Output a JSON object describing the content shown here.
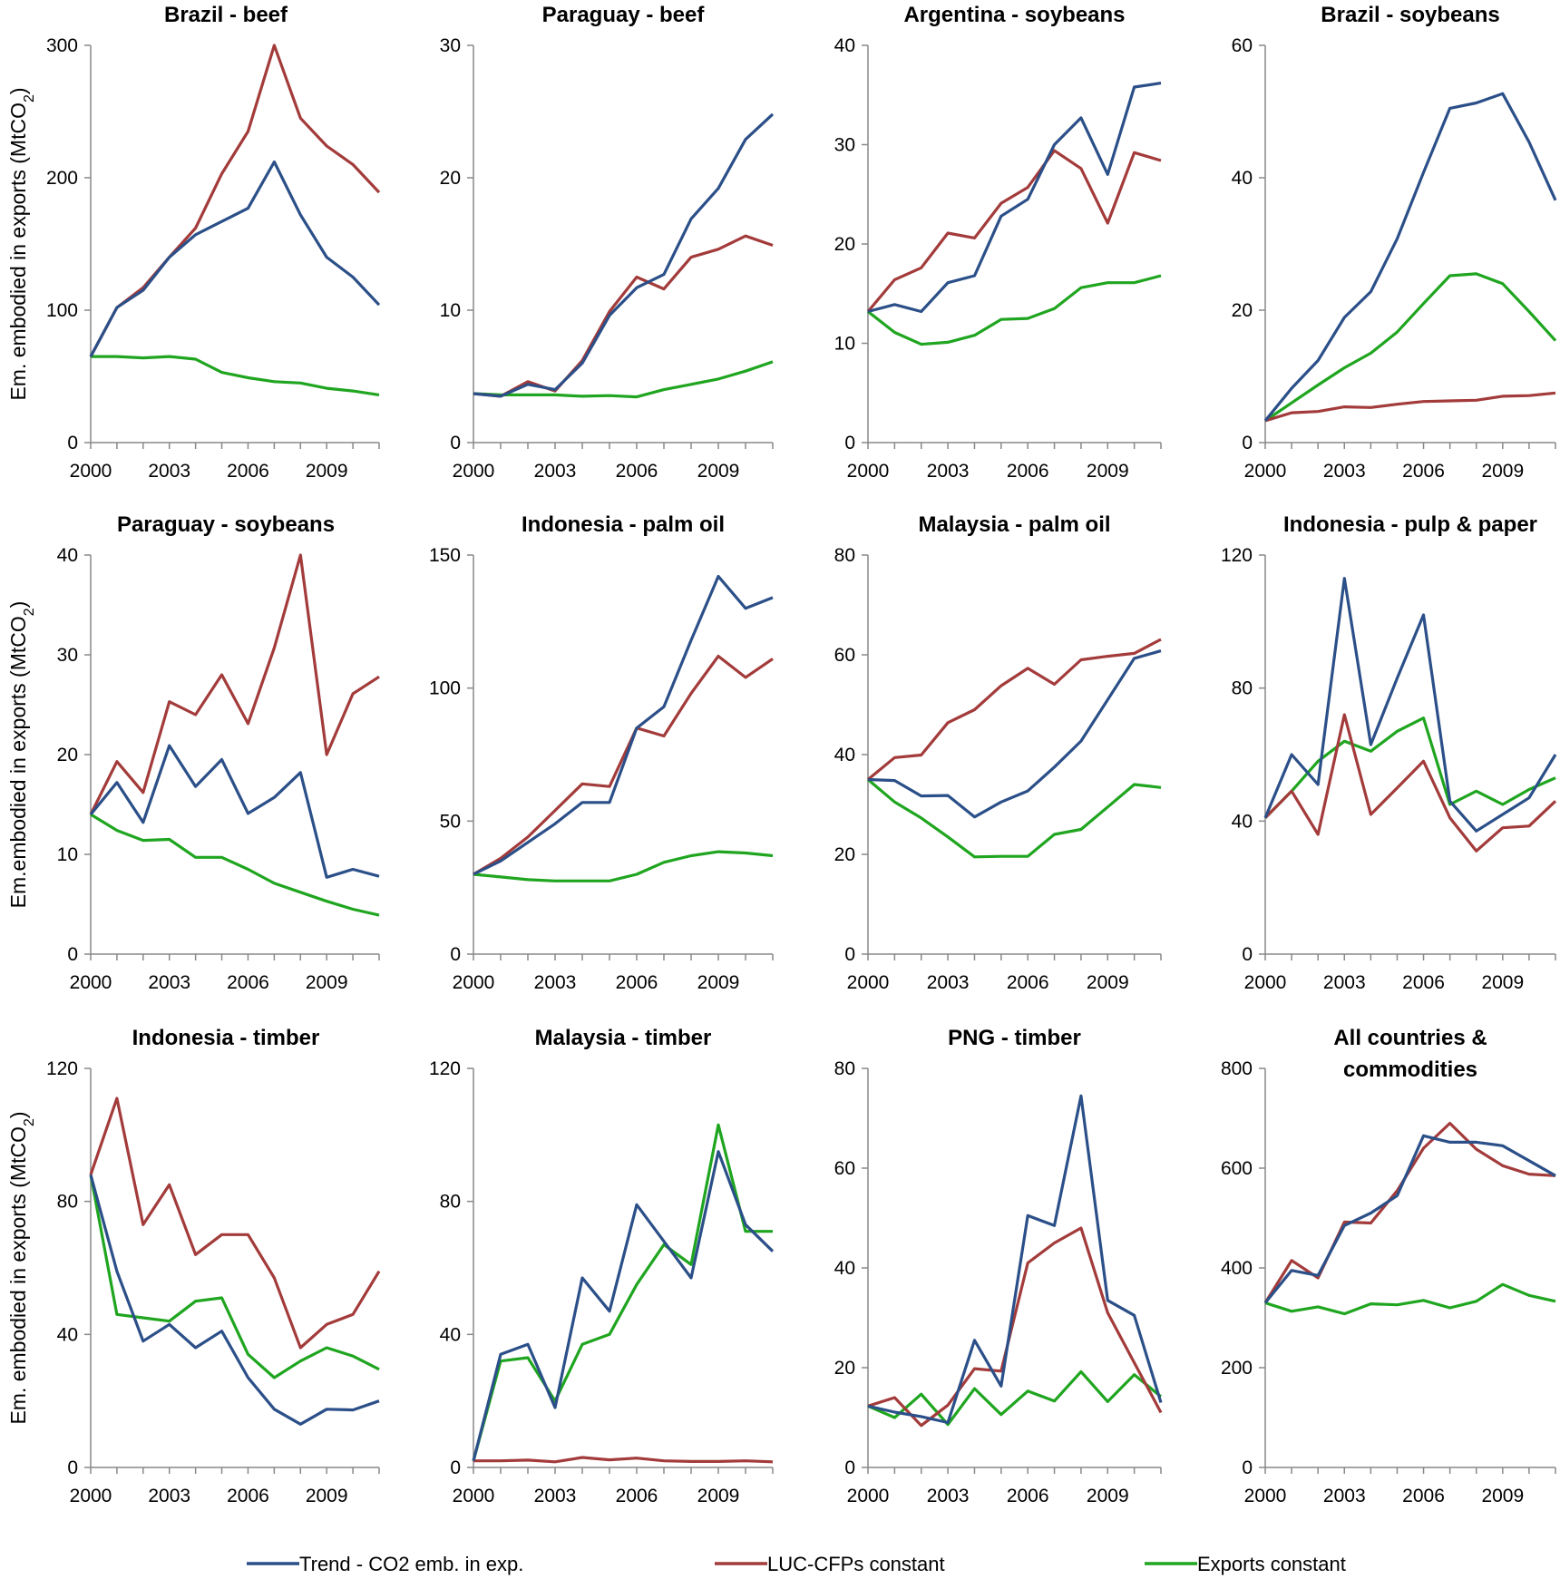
{
  "legend": [
    {
      "name": "Trend - CO2 emb. in exp.",
      "color": "#2b4f88"
    },
    {
      "name": "LUC-CFPs constant",
      "color": "#a33b3b"
    },
    {
      "name": "Exports constant",
      "color": "#1fa51f"
    }
  ],
  "chart_data": [
    {
      "type": "line",
      "title": [
        "Brazil - beef"
      ],
      "ylabel": "Em. embodied in exports (MtCO2)",
      "ylim": [
        0,
        300
      ],
      "yticks": [
        0,
        100,
        200,
        300
      ],
      "xticks": [
        2000,
        2003,
        2006,
        2009
      ],
      "x": [
        2000,
        2001,
        2002,
        2003,
        2004,
        2005,
        2006,
        2007,
        2008,
        2009,
        2010,
        2011
      ],
      "series": [
        {
          "name": "Trend - CO2 emb. in exp.",
          "values": [
            65,
            102,
            115,
            140,
            157,
            167,
            177,
            212,
            172,
            140,
            125,
            104
          ]
        },
        {
          "name": "LUC-CFPs constant",
          "values": [
            65,
            102,
            117,
            140,
            162,
            203,
            235,
            300,
            245,
            224,
            210,
            189
          ]
        },
        {
          "name": "Exports constant",
          "values": [
            65,
            65,
            64,
            65,
            63,
            53,
            49,
            46,
            45,
            41,
            39,
            36
          ]
        }
      ]
    },
    {
      "type": "line",
      "title": [
        "Paraguay - beef"
      ],
      "ylabel": "",
      "ylim": [
        0,
        30
      ],
      "yticks": [
        0,
        10,
        20,
        30
      ],
      "xticks": [
        2000,
        2003,
        2006,
        2009
      ],
      "x": [
        2000,
        2001,
        2002,
        2003,
        2004,
        2005,
        2006,
        2007,
        2008,
        2009,
        2010,
        2011
      ],
      "series": [
        {
          "name": "Trend - CO2 emb. in exp.",
          "values": [
            3.7,
            3.5,
            4.4,
            4.0,
            6.0,
            9.6,
            11.7,
            12.7,
            16.9,
            19.2,
            22.9,
            24.8
          ]
        },
        {
          "name": "LUC-CFPs constant",
          "values": [
            3.7,
            3.5,
            4.6,
            3.9,
            6.2,
            9.9,
            12.5,
            11.6,
            14.0,
            14.6,
            15.6,
            14.9
          ]
        },
        {
          "name": "Exports constant",
          "values": [
            3.7,
            3.6,
            3.6,
            3.6,
            3.5,
            3.55,
            3.45,
            4.0,
            4.4,
            4.8,
            5.4,
            6.1
          ]
        }
      ]
    },
    {
      "type": "line",
      "title": [
        "Argentina - soybeans"
      ],
      "ylabel": "",
      "ylim": [
        0,
        40
      ],
      "yticks": [
        0,
        10,
        20,
        30,
        40
      ],
      "xticks": [
        2000,
        2003,
        2006,
        2009
      ],
      "x": [
        2000,
        2001,
        2002,
        2003,
        2004,
        2005,
        2006,
        2007,
        2008,
        2009,
        2010,
        2011
      ],
      "series": [
        {
          "name": "Trend - CO2 emb. in exp.",
          "values": [
            13.2,
            13.9,
            13.2,
            16.1,
            16.8,
            22.8,
            24.5,
            30.0,
            32.7,
            27.0,
            35.8,
            36.2
          ]
        },
        {
          "name": "LUC-CFPs constant",
          "values": [
            13.2,
            16.4,
            17.6,
            21.1,
            20.6,
            24.1,
            25.7,
            29.4,
            27.6,
            22.1,
            29.2,
            28.4
          ]
        },
        {
          "name": "Exports constant",
          "values": [
            13.2,
            11.1,
            9.9,
            10.1,
            10.8,
            12.4,
            12.5,
            13.5,
            15.6,
            16.1,
            16.1,
            16.8
          ]
        }
      ]
    },
    {
      "type": "line",
      "title": [
        "Brazil - soybeans"
      ],
      "ylabel": "",
      "ylim": [
        0,
        60
      ],
      "yticks": [
        0,
        20,
        40,
        60
      ],
      "xticks": [
        2000,
        2003,
        2006,
        2009
      ],
      "x": [
        2000,
        2001,
        2002,
        2003,
        2004,
        2005,
        2006,
        2007,
        2008,
        2009,
        2010,
        2011
      ],
      "series": [
        {
          "name": "Trend - CO2 emb. in exp.",
          "values": [
            3.3,
            8.2,
            12.4,
            18.9,
            22.8,
            30.8,
            40.8,
            50.5,
            51.3,
            52.7,
            45.4,
            36.6
          ]
        },
        {
          "name": "LUC-CFPs constant",
          "values": [
            3.3,
            4.5,
            4.7,
            5.4,
            5.3,
            5.8,
            6.2,
            6.3,
            6.4,
            7.0,
            7.1,
            7.5
          ]
        },
        {
          "name": "Exports constant",
          "values": [
            3.3,
            6.0,
            8.7,
            11.3,
            13.5,
            16.7,
            21.0,
            25.2,
            25.5,
            24.0,
            19.8,
            15.4
          ]
        }
      ]
    },
    {
      "type": "line",
      "title": [
        "Paraguay - soybeans"
      ],
      "ylabel": "Em.embodied in exports (MtCO2)",
      "ylim": [
        0,
        40
      ],
      "yticks": [
        0,
        10,
        20,
        30,
        40
      ],
      "xticks": [
        2000,
        2003,
        2006,
        2009
      ],
      "x": [
        2000,
        2001,
        2002,
        2003,
        2004,
        2005,
        2006,
        2007,
        2008,
        2009,
        2010,
        2011
      ],
      "series": [
        {
          "name": "Trend - CO2 emb. in exp.",
          "values": [
            14,
            17.2,
            13.2,
            20.9,
            16.8,
            19.5,
            14.1,
            15.7,
            18.2,
            7.7,
            8.5,
            7.8
          ]
        },
        {
          "name": "LUC-CFPs constant",
          "values": [
            14,
            19.3,
            16.2,
            25.3,
            24.0,
            28.0,
            23.1,
            30.7,
            40,
            20.0,
            26.1,
            27.8
          ]
        },
        {
          "name": "Exports constant",
          "values": [
            14,
            12.4,
            11.4,
            11.5,
            9.7,
            9.7,
            8.5,
            7.1,
            6.2,
            5.3,
            4.5,
            3.9
          ]
        }
      ]
    },
    {
      "type": "line",
      "title": [
        "Indonesia - palm oil"
      ],
      "ylabel": "",
      "ylim": [
        0,
        150
      ],
      "yticks": [
        0,
        50,
        100,
        150
      ],
      "xticks": [
        2000,
        2003,
        2006,
        2009
      ],
      "x": [
        2000,
        2001,
        2002,
        2003,
        2004,
        2005,
        2006,
        2007,
        2008,
        2009,
        2010,
        2011
      ],
      "series": [
        {
          "name": "Trend - CO2 emb. in exp.",
          "values": [
            30,
            35,
            42,
            49,
            57,
            57,
            85,
            93,
            118,
            142,
            130,
            134
          ]
        },
        {
          "name": "LUC-CFPs constant",
          "values": [
            30,
            36,
            44,
            54,
            64,
            63,
            85,
            82,
            98,
            112,
            104,
            111
          ]
        },
        {
          "name": "Exports constant",
          "values": [
            30,
            29,
            28,
            27.5,
            27.5,
            27.5,
            30,
            34.5,
            37,
            38.5,
            38,
            37
          ]
        }
      ]
    },
    {
      "type": "line",
      "title": [
        "Malaysia - palm oil"
      ],
      "ylabel": "",
      "ylim": [
        0,
        80
      ],
      "yticks": [
        0,
        20,
        40,
        60,
        80
      ],
      "xticks": [
        2000,
        2003,
        2006,
        2009
      ],
      "x": [
        2000,
        2001,
        2002,
        2003,
        2004,
        2005,
        2006,
        2007,
        2008,
        2009,
        2010,
        2011
      ],
      "series": [
        {
          "name": "Trend - CO2 emb. in exp.",
          "values": [
            35,
            34.8,
            31.7,
            31.8,
            27.5,
            30.5,
            32.7,
            37.5,
            42.7,
            51,
            59.3,
            60.8
          ]
        },
        {
          "name": "LUC-CFPs constant",
          "values": [
            35,
            39.4,
            39.9,
            46.4,
            49,
            53.8,
            57.3,
            54.1,
            59,
            59.7,
            60.3,
            63.1
          ]
        },
        {
          "name": "Exports constant",
          "values": [
            35,
            30.5,
            27.3,
            23.5,
            19.5,
            19.6,
            19.6,
            24,
            25,
            29.5,
            34,
            33.4
          ]
        }
      ]
    },
    {
      "type": "line",
      "title": [
        "Indonesia - pulp & paper"
      ],
      "ylabel": "",
      "ylim": [
        0,
        120
      ],
      "yticks": [
        0,
        40,
        80,
        120
      ],
      "xticks": [
        2000,
        2003,
        2006,
        2009
      ],
      "x": [
        2000,
        2001,
        2002,
        2003,
        2004,
        2005,
        2006,
        2007,
        2008,
        2009,
        2010,
        2011
      ],
      "series": [
        {
          "name": "Trend - CO2 emb. in exp.",
          "values": [
            41,
            60,
            51,
            113,
            63,
            83,
            102,
            46,
            37,
            42,
            47,
            60
          ]
        },
        {
          "name": "LUC-CFPs constant",
          "values": [
            41,
            49,
            36,
            72,
            42,
            50,
            58,
            41,
            31,
            38,
            38.5,
            46
          ]
        },
        {
          "name": "Exports constant",
          "values": [
            41,
            49,
            58,
            64,
            61,
            67,
            71,
            45,
            49,
            45,
            49.5,
            53
          ]
        }
      ]
    },
    {
      "type": "line",
      "title": [
        "Indonesia - timber"
      ],
      "ylabel": "Em. embodied in exports (MtCO2)",
      "ylim": [
        0,
        120
      ],
      "yticks": [
        0,
        40,
        80,
        120
      ],
      "xticks": [
        2000,
        2003,
        2006,
        2009
      ],
      "x": [
        2000,
        2001,
        2002,
        2003,
        2004,
        2005,
        2006,
        2007,
        2008,
        2009,
        2010,
        2011
      ],
      "series": [
        {
          "name": "Trend - CO2 emb. in exp.",
          "values": [
            88,
            59,
            38,
            43,
            36,
            41,
            27,
            17.5,
            13,
            17.5,
            17.3,
            20
          ]
        },
        {
          "name": "LUC-CFPs constant",
          "values": [
            88,
            111,
            73,
            85,
            64,
            70,
            70,
            57,
            36,
            43,
            46,
            59
          ]
        },
        {
          "name": "Exports constant",
          "values": [
            88,
            46,
            45,
            44,
            50,
            51,
            34,
            27,
            32,
            36,
            33.5,
            29.5
          ]
        }
      ]
    },
    {
      "type": "line",
      "title": [
        "Malaysia - timber"
      ],
      "ylabel": "",
      "ylim": [
        0,
        120
      ],
      "yticks": [
        0,
        40,
        80,
        120
      ],
      "xticks": [
        2000,
        2003,
        2006,
        2009
      ],
      "x": [
        2000,
        2001,
        2002,
        2003,
        2004,
        2005,
        2006,
        2007,
        2008,
        2009,
        2010,
        2011
      ],
      "series": [
        {
          "name": "Trend - CO2 emb. in exp.",
          "values": [
            2,
            34,
            37,
            18,
            57,
            47,
            79,
            68,
            57,
            95,
            73,
            65
          ]
        },
        {
          "name": "LUC-CFPs constant",
          "values": [
            2,
            2,
            2.2,
            1.7,
            3,
            2.3,
            2.8,
            2,
            1.8,
            1.8,
            2,
            1.7
          ]
        },
        {
          "name": "Exports constant",
          "values": [
            2,
            32,
            33,
            20,
            37,
            40,
            55,
            67,
            61,
            103,
            71,
            71
          ]
        }
      ]
    },
    {
      "type": "line",
      "title": [
        "PNG - timber"
      ],
      "ylabel": "",
      "ylim": [
        0,
        80
      ],
      "yticks": [
        0,
        20,
        40,
        60,
        80
      ],
      "xticks": [
        2000,
        2003,
        2006,
        2009
      ],
      "x": [
        2000,
        2001,
        2002,
        2003,
        2004,
        2005,
        2006,
        2007,
        2008,
        2009,
        2010,
        2011
      ],
      "series": [
        {
          "name": "Trend - CO2 emb. in exp.",
          "values": [
            12.3,
            11.1,
            10.2,
            9.0,
            25.5,
            16.3,
            50.5,
            48.5,
            74.5,
            33.5,
            30.5,
            13
          ]
        },
        {
          "name": "LUC-CFPs constant",
          "values": [
            12.3,
            14,
            8.4,
            12.5,
            19.8,
            19.3,
            41,
            45,
            48,
            31,
            21,
            11
          ]
        },
        {
          "name": "Exports constant",
          "values": [
            12.3,
            10,
            14.7,
            8.6,
            15.8,
            10.6,
            15.3,
            13.3,
            19.2,
            13.2,
            18.6,
            14.2
          ]
        }
      ]
    },
    {
      "type": "line",
      "title": [
        "All countries &",
        "commodities"
      ],
      "ylabel": "",
      "ylim": [
        0,
        800
      ],
      "yticks": [
        0,
        200,
        400,
        600,
        800
      ],
      "xticks": [
        2000,
        2003,
        2006,
        2009
      ],
      "x": [
        2000,
        2001,
        2002,
        2003,
        2004,
        2005,
        2006,
        2007,
        2008,
        2009,
        2010,
        2011
      ],
      "series": [
        {
          "name": "Trend - CO2 emb. in exp.",
          "values": [
            330,
            395,
            385,
            485,
            510,
            545,
            665,
            652,
            652,
            645,
            615,
            585
          ]
        },
        {
          "name": "LUC-CFPs constant",
          "values": [
            330,
            415,
            380,
            492,
            490,
            555,
            640,
            690,
            638,
            605,
            588,
            585
          ]
        },
        {
          "name": "Exports constant",
          "values": [
            330,
            313,
            322,
            308,
            328,
            326,
            335,
            320,
            333,
            367,
            345,
            333
          ]
        }
      ]
    }
  ]
}
